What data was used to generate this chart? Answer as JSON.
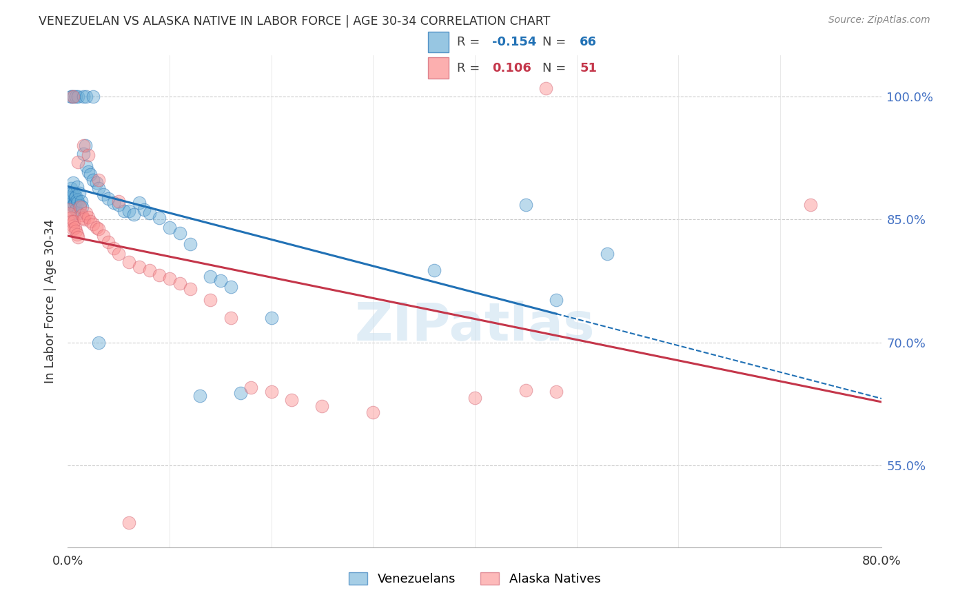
{
  "title": "VENEZUELAN VS ALASKA NATIVE IN LABOR FORCE | AGE 30-34 CORRELATION CHART",
  "source": "Source: ZipAtlas.com",
  "ylabel": "In Labor Force | Age 30-34",
  "xlim": [
    0.0,
    0.8
  ],
  "ylim": [
    0.45,
    1.05
  ],
  "xticks": [
    0.0,
    0.1,
    0.2,
    0.3,
    0.4,
    0.5,
    0.6,
    0.7,
    0.8
  ],
  "xticklabels": [
    "0.0%",
    "",
    "",
    "",
    "",
    "",
    "",
    "",
    "80.0%"
  ],
  "ytick_positions": [
    0.55,
    0.7,
    0.85,
    1.0
  ],
  "ytick_labels": [
    "55.0%",
    "70.0%",
    "85.0%",
    "100.0%"
  ],
  "blue_color": "#6baed6",
  "pink_color": "#fc8d8d",
  "blue_line_color": "#2171b5",
  "pink_line_color": "#c4364a",
  "legend_r_blue": "-0.154",
  "legend_n_blue": "66",
  "legend_r_pink": "0.106",
  "legend_n_pink": "51",
  "watermark": "ZIPatlas",
  "blue_x": [
    0.001,
    0.002,
    0.002,
    0.003,
    0.003,
    0.004,
    0.004,
    0.004,
    0.005,
    0.005,
    0.005,
    0.006,
    0.006,
    0.007,
    0.007,
    0.008,
    0.008,
    0.009,
    0.009,
    0.01,
    0.01,
    0.011,
    0.012,
    0.013,
    0.014,
    0.015,
    0.017,
    0.018,
    0.02,
    0.022,
    0.025,
    0.028,
    0.03,
    0.035,
    0.04,
    0.045,
    0.05,
    0.055,
    0.06,
    0.065,
    0.07,
    0.075,
    0.08,
    0.09,
    0.1,
    0.11,
    0.12,
    0.14,
    0.15,
    0.16,
    0.003,
    0.004,
    0.006,
    0.008,
    0.01,
    0.015,
    0.018,
    0.025,
    0.45,
    0.53,
    0.2,
    0.36,
    0.48,
    0.03,
    0.17,
    0.13
  ],
  "blue_y": [
    0.878,
    0.872,
    0.88,
    0.869,
    0.888,
    0.875,
    0.882,
    0.877,
    0.866,
    0.895,
    0.858,
    0.882,
    0.869,
    0.876,
    0.871,
    0.878,
    0.862,
    0.89,
    0.874,
    0.871,
    0.858,
    0.882,
    0.867,
    0.872,
    0.865,
    0.93,
    0.94,
    0.915,
    0.908,
    0.905,
    0.898,
    0.895,
    0.888,
    0.88,
    0.875,
    0.87,
    0.868,
    0.86,
    0.86,
    0.856,
    0.87,
    0.862,
    0.858,
    0.852,
    0.84,
    0.833,
    0.82,
    0.78,
    0.775,
    0.768,
    1.0,
    1.0,
    1.0,
    1.0,
    1.0,
    1.0,
    1.0,
    1.0,
    0.868,
    0.808,
    0.73,
    0.788,
    0.752,
    0.7,
    0.638,
    0.635
  ],
  "pink_x": [
    0.001,
    0.002,
    0.003,
    0.004,
    0.005,
    0.005,
    0.006,
    0.007,
    0.008,
    0.009,
    0.01,
    0.012,
    0.014,
    0.015,
    0.016,
    0.018,
    0.02,
    0.022,
    0.025,
    0.028,
    0.03,
    0.035,
    0.04,
    0.045,
    0.05,
    0.06,
    0.07,
    0.08,
    0.09,
    0.1,
    0.11,
    0.12,
    0.14,
    0.16,
    0.18,
    0.2,
    0.22,
    0.25,
    0.3,
    0.4,
    0.005,
    0.01,
    0.015,
    0.02,
    0.03,
    0.05,
    0.47,
    0.73,
    0.48,
    0.45,
    0.06
  ],
  "pink_y": [
    0.862,
    0.857,
    0.852,
    0.848,
    0.842,
    0.838,
    0.848,
    0.84,
    0.836,
    0.832,
    0.828,
    0.865,
    0.855,
    0.852,
    0.85,
    0.858,
    0.853,
    0.848,
    0.844,
    0.84,
    0.838,
    0.83,
    0.822,
    0.815,
    0.808,
    0.798,
    0.792,
    0.788,
    0.782,
    0.778,
    0.772,
    0.765,
    0.752,
    0.73,
    0.645,
    0.64,
    0.63,
    0.622,
    0.615,
    0.632,
    1.0,
    0.92,
    0.94,
    0.928,
    0.898,
    0.872,
    1.01,
    0.868,
    0.64,
    0.642,
    0.48
  ]
}
